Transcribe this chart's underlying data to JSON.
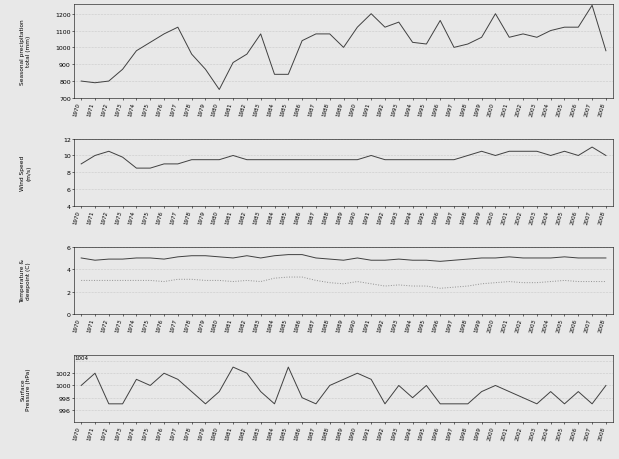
{
  "years": [
    1970,
    1971,
    1972,
    1973,
    1974,
    1975,
    1976,
    1977,
    1978,
    1979,
    1980,
    1981,
    1982,
    1983,
    1984,
    1985,
    1986,
    1987,
    1988,
    1989,
    1990,
    1991,
    1992,
    1993,
    1994,
    1995,
    1996,
    1997,
    1998,
    1999,
    2000,
    2001,
    2002,
    2003,
    2004,
    2005,
    2006,
    2007,
    2008
  ],
  "precipitation": [
    800,
    790,
    800,
    870,
    980,
    1030,
    1080,
    1120,
    960,
    870,
    750,
    910,
    960,
    1080,
    840,
    840,
    1040,
    1080,
    1080,
    1000,
    1120,
    1200,
    1120,
    1150,
    1030,
    1020,
    1160,
    1000,
    1020,
    1060,
    1200,
    1060,
    1080,
    1060,
    1100,
    1120,
    1120,
    1250,
    980
  ],
  "wind_speed": [
    9.0,
    10.0,
    10.5,
    9.8,
    8.5,
    8.5,
    9.0,
    9.0,
    9.5,
    9.5,
    9.5,
    10.0,
    9.5,
    9.5,
    9.5,
    9.5,
    9.5,
    9.5,
    9.5,
    9.5,
    9.5,
    10.0,
    9.5,
    9.5,
    9.5,
    9.5,
    9.5,
    9.5,
    10.0,
    10.5,
    10.0,
    10.5,
    10.5,
    10.5,
    10.0,
    10.5,
    10.0,
    11.0,
    10.0
  ],
  "temperature": [
    5.0,
    4.8,
    4.9,
    4.9,
    5.0,
    5.0,
    4.9,
    5.1,
    5.2,
    5.2,
    5.1,
    5.0,
    5.2,
    5.0,
    5.2,
    5.3,
    5.3,
    5.0,
    4.9,
    4.8,
    5.0,
    4.8,
    4.8,
    4.9,
    4.8,
    4.8,
    4.7,
    4.8,
    4.9,
    5.0,
    5.0,
    5.1,
    5.0,
    5.0,
    5.0,
    5.1,
    5.0,
    5.0,
    5.0
  ],
  "dewpoint": [
    3.0,
    3.0,
    3.0,
    3.0,
    3.0,
    3.0,
    2.9,
    3.1,
    3.1,
    3.0,
    3.0,
    2.9,
    3.0,
    2.9,
    3.2,
    3.3,
    3.3,
    3.0,
    2.8,
    2.7,
    2.9,
    2.7,
    2.5,
    2.6,
    2.5,
    2.5,
    2.3,
    2.4,
    2.5,
    2.7,
    2.8,
    2.9,
    2.8,
    2.8,
    2.9,
    3.0,
    2.9,
    2.9,
    2.9
  ],
  "pressure": [
    1000,
    1002,
    997,
    997,
    1001,
    1000,
    1002,
    1001,
    999,
    997,
    999,
    1003,
    1002,
    999,
    997,
    1003,
    998,
    997,
    1000,
    1001,
    1002,
    1001,
    997,
    1000,
    998,
    1000,
    997,
    997,
    997,
    999,
    1000,
    999,
    998,
    997,
    999,
    997,
    999,
    997,
    1000
  ],
  "line_color": "#404040",
  "line_color2": "#909090",
  "bg_color": "#e8e8e8",
  "grid_color": "#b0b0b0"
}
